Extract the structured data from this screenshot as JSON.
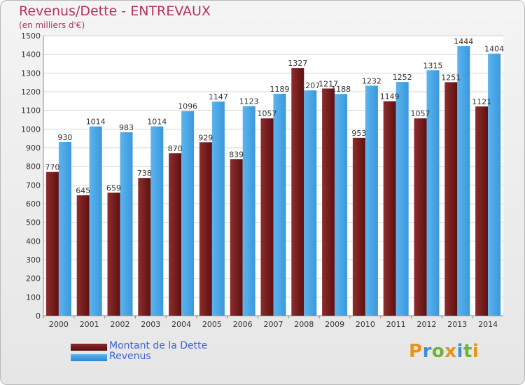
{
  "chart_data": {
    "type": "bar",
    "title": "Revenus/Dette - ENTREVAUX",
    "subtitle": "(en milliers d'€)",
    "categories": [
      "2000",
      "2001",
      "2002",
      "2003",
      "2004",
      "2005",
      "2006",
      "2007",
      "2008",
      "2009",
      "2010",
      "2011",
      "2012",
      "2013",
      "2014"
    ],
    "series": [
      {
        "name": "Montant de la Dette",
        "values": [
          770,
          645,
          659,
          738,
          870,
          929,
          839,
          1057,
          1327,
          1217,
          953,
          1149,
          1057,
          1251,
          1121
        ],
        "color": "#7a1a1a"
      },
      {
        "name": "Revenus",
        "values": [
          930,
          1014,
          983,
          1014,
          1096,
          1147,
          1123,
          1189,
          1207,
          1188,
          1232,
          1252,
          1315,
          1444,
          1404
        ],
        "color": "#3a9de2"
      }
    ],
    "ylim": [
      0,
      1500
    ],
    "yticks": [
      0,
      100,
      200,
      300,
      400,
      500,
      600,
      700,
      800,
      900,
      1000,
      1100,
      1200,
      1300,
      1400,
      1500
    ],
    "grid": true,
    "legend_position": "bottom-left"
  },
  "logo_text": "Proxiti",
  "colors": {
    "title": "#b5325f",
    "legend_text": "#3f62d8",
    "debt": "#7a1a1a",
    "revenue": "#3a9de2"
  }
}
